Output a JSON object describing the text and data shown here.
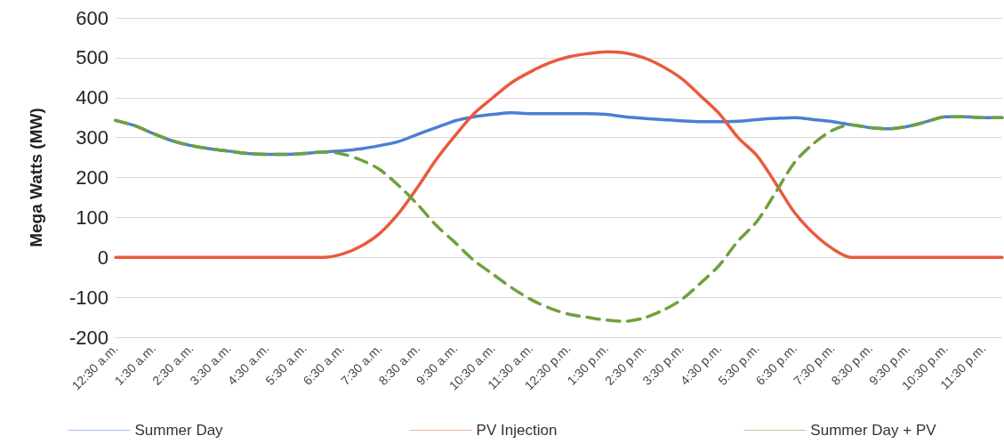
{
  "chart_data": {
    "type": "line",
    "ylabel": "Mega Watts (MW)",
    "categories": [
      "12:30 a.m.",
      null,
      "1:30 a.m.",
      null,
      "2:30 a.m.",
      null,
      "3:30 a.m.",
      null,
      "4:30 a.m.",
      null,
      "5:30 a.m.",
      null,
      "6:30 a.m.",
      null,
      "7:30 a.m.",
      null,
      "8:30 a.m.",
      null,
      "9:30 a.m.",
      null,
      "10:30 a.m.",
      null,
      "11:30 a.m.",
      null,
      "12:30 p.m.",
      null,
      "1:30 p.m.",
      null,
      "2:30 p.m.",
      null,
      "3:30 p.m.",
      null,
      "4:30 p.m.",
      null,
      "5:30 p.m.",
      null,
      "6:30 p.m.",
      null,
      "7:30 p.m.",
      null,
      "8:30 p.m.",
      null,
      "9:30 p.m.",
      null,
      "10:30 p.m.",
      null,
      "11:30 p.m.",
      null
    ],
    "series": [
      {
        "name": "Summer Day",
        "color": "#4a7fd4",
        "line_style": "solid",
        "values": [
          343,
          330,
          310,
          292,
          280,
          272,
          266,
          260,
          258,
          258,
          260,
          264,
          267,
          272,
          280,
          290,
          308,
          325,
          342,
          352,
          358,
          362,
          360,
          360,
          360,
          360,
          358,
          352,
          348,
          345,
          342,
          340,
          340,
          341,
          345,
          348,
          350,
          345,
          340,
          332,
          325,
          322,
          328,
          340,
          352,
          352,
          350,
          350
        ]
      },
      {
        "name": "PV Injection",
        "color": "#ea5a3c",
        "line_style": "solid",
        "values": [
          0,
          0,
          0,
          0,
          0,
          0,
          0,
          0,
          0,
          0,
          0,
          0,
          8,
          28,
          60,
          110,
          175,
          245,
          305,
          360,
          400,
          438,
          465,
          487,
          502,
          510,
          515,
          512,
          500,
          478,
          448,
          405,
          360,
          300,
          255,
          185,
          112,
          60,
          22,
          0,
          0,
          0,
          0,
          0,
          0,
          0,
          0,
          0
        ]
      },
      {
        "name": "Summer Day + PV",
        "color": "#70a03c",
        "line_style": "dashed",
        "values": [
          343,
          330,
          310,
          292,
          280,
          272,
          266,
          260,
          258,
          258,
          260,
          264,
          259,
          244,
          220,
          180,
          133,
          80,
          37,
          -8,
          -42,
          -76,
          -105,
          -127,
          -142,
          -150,
          -157,
          -160,
          -152,
          -133,
          -106,
          -65,
          -20,
          41,
          90,
          163,
          238,
          285,
          318,
          332,
          325,
          322,
          328,
          340,
          352,
          352,
          350,
          350
        ]
      }
    ],
    "ylim": [
      -200,
      600
    ],
    "yticks": [
      -200,
      -100,
      0,
      100,
      200,
      300,
      400,
      500,
      600
    ],
    "grid": "y",
    "legend": "bottom",
    "marker": "none"
  }
}
